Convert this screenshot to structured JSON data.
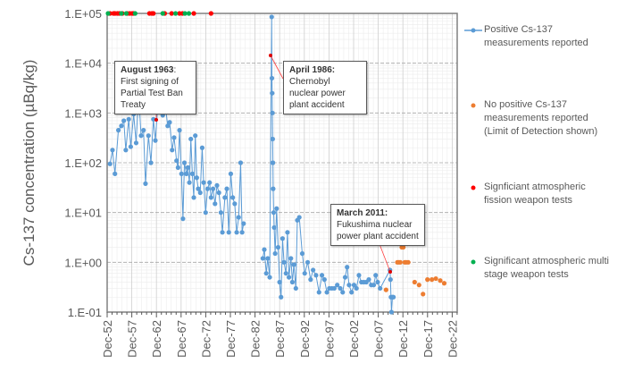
{
  "chart_data": {
    "type": "scatter",
    "title": "",
    "ylabel": "Cs-137 concentration (µBq/kg)",
    "xlabel": "",
    "y_scale": "log",
    "ylim": [
      0.1,
      100000
    ],
    "xlim": [
      "Dec-52",
      "Dec-23"
    ],
    "grid": true,
    "legend_placement": "right",
    "y_ticks": [
      "1.E-01",
      "1.E+00",
      "1.E+01",
      "1.E+02",
      "1.E+03",
      "1.E+04",
      "1.E+05"
    ],
    "x_ticks": [
      "Dec-52",
      "Dec-57",
      "Dec-62",
      "Dec-67",
      "Dec-72",
      "Dec-77",
      "Dec-82",
      "Dec-87",
      "Dec-92",
      "Dec-97",
      "Dec-02",
      "Dec-07",
      "Dec-12",
      "Dec-17",
      "Dec-22"
    ],
    "colors": {
      "positive": "#5B9BD5",
      "lod": "#ED7D31",
      "fission": "#FF0000",
      "multistage": "#00B050"
    },
    "series": [
      {
        "name": "Positive Cs-137 measurements reported",
        "style": "line-marker",
        "points": [
          [
            1953.5,
            95
          ],
          [
            1954,
            180
          ],
          [
            1954.5,
            60
          ],
          [
            1955.2,
            450
          ],
          [
            1955.8,
            550
          ],
          [
            1956.3,
            700
          ],
          [
            1956.7,
            180
          ],
          [
            1957.3,
            750
          ],
          [
            1957.7,
            210
          ],
          [
            1958.3,
            950
          ],
          [
            1958.8,
            250
          ],
          [
            1959.3,
            2500
          ],
          [
            1959.8,
            350
          ],
          [
            1960.3,
            450
          ],
          [
            1960.7,
            38
          ],
          [
            1961.3,
            350
          ],
          [
            1961.8,
            100
          ],
          [
            1962.3,
            750
          ],
          [
            1962.7,
            280
          ],
          [
            1963.3,
            2000
          ],
          [
            1963.7,
            3000
          ],
          [
            1964.2,
            900
          ],
          [
            1964.7,
            1500
          ],
          [
            1965.2,
            550
          ],
          [
            1965.6,
            650
          ],
          [
            1966.1,
            180
          ],
          [
            1966.5,
            320
          ],
          [
            1967,
            110
          ],
          [
            1967.3,
            80
          ],
          [
            1967.6,
            450
          ],
          [
            1968,
            60
          ],
          [
            1968.3,
            7.5
          ],
          [
            1968.6,
            100
          ],
          [
            1969,
            60
          ],
          [
            1969.3,
            80
          ],
          [
            1969.6,
            40
          ],
          [
            1969.9,
            300
          ],
          [
            1970.2,
            60
          ],
          [
            1970.5,
            20
          ],
          [
            1970.8,
            350
          ],
          [
            1971.1,
            50
          ],
          [
            1971.4,
            30
          ],
          [
            1971.8,
            25
          ],
          [
            1972.2,
            200
          ],
          [
            1972.5,
            40
          ],
          [
            1972.9,
            10
          ],
          [
            1973.3,
            30
          ],
          [
            1973.7,
            40
          ],
          [
            1974,
            20
          ],
          [
            1974.4,
            30
          ],
          [
            1974.8,
            15
          ],
          [
            1975.2,
            35
          ],
          [
            1975.6,
            25
          ],
          [
            1976,
            10
          ],
          [
            1976.3,
            4
          ],
          [
            1976.8,
            20
          ],
          [
            1977.2,
            30
          ],
          [
            1977.6,
            4
          ],
          [
            1978,
            60
          ],
          [
            1978.4,
            20
          ],
          [
            1978.8,
            15
          ],
          [
            1979.2,
            4
          ],
          [
            1979.6,
            8
          ],
          [
            1980,
            100
          ],
          [
            1980.3,
            4
          ],
          [
            1980.6,
            6
          ],
          [
            1984.5,
            1.2
          ],
          [
            1984.8,
            1.8
          ],
          [
            1985.2,
            0.6
          ],
          [
            1985.5,
            1.2
          ],
          [
            1985.9,
            0.5
          ],
          [
            1986.3,
            85000
          ],
          [
            1986.35,
            5000
          ],
          [
            1986.4,
            2500
          ],
          [
            1986.45,
            1000
          ],
          [
            1986.5,
            300
          ],
          [
            1986.55,
            100
          ],
          [
            1986.6,
            30
          ],
          [
            1986.7,
            10
          ],
          [
            1986.8,
            5
          ],
          [
            1987,
            1.5
          ],
          [
            1987.3,
            12
          ],
          [
            1987.6,
            2
          ],
          [
            1987.9,
            0.4
          ],
          [
            1988.2,
            0.2
          ],
          [
            1988.5,
            3
          ],
          [
            1988.8,
            1
          ],
          [
            1989.2,
            0.6
          ],
          [
            1989.5,
            4
          ],
          [
            1989.8,
            0.5
          ],
          [
            1990.2,
            1.2
          ],
          [
            1990.5,
            0.4
          ],
          [
            1990.8,
            0.9
          ],
          [
            1991.2,
            0.3
          ],
          [
            1991.5,
            7
          ],
          [
            1991.9,
            8
          ],
          [
            1992.5,
            1.5
          ],
          [
            1993,
            0.6
          ],
          [
            1993.6,
            1
          ],
          [
            1994.2,
            0.45
          ],
          [
            1994.7,
            0.7
          ],
          [
            1995.3,
            0.55
          ],
          [
            1995.9,
            0.25
          ],
          [
            1996.5,
            0.55
          ],
          [
            1997,
            0.45
          ],
          [
            1997.5,
            0.25
          ],
          [
            1998,
            0.3
          ],
          [
            1998.5,
            0.3
          ],
          [
            1999,
            0.3
          ],
          [
            1999.6,
            0.35
          ],
          [
            2000.2,
            0.3
          ],
          [
            2000.7,
            0.25
          ],
          [
            2001.2,
            0.5
          ],
          [
            2001.6,
            0.8
          ],
          [
            2002,
            0.35
          ],
          [
            2002.5,
            0.25
          ],
          [
            2003,
            0.35
          ],
          [
            2003.5,
            0.3
          ],
          [
            2004,
            0.55
          ],
          [
            2004.5,
            0.4
          ],
          [
            2005,
            0.4
          ],
          [
            2005.5,
            0.4
          ],
          [
            2006,
            0.45
          ],
          [
            2006.5,
            0.35
          ],
          [
            2007,
            0.35
          ],
          [
            2007.4,
            0.55
          ],
          [
            2007.8,
            0.4
          ],
          [
            2008.3,
            0.3
          ],
          [
            2010.3,
            0.7
          ],
          [
            2010.4,
            0.45
          ],
          [
            2010.5,
            0.2
          ],
          [
            2010.6,
            0.1
          ],
          [
            2010.8,
            0.2
          ],
          [
            2011,
            0.2
          ]
        ]
      },
      {
        "name": "No positive Cs-137 measurements reported (Limit of Detection shown)",
        "style": "marker",
        "points": [
          [
            2009.5,
            0.28
          ],
          [
            2011.8,
            1
          ],
          [
            2012.1,
            1
          ],
          [
            2012.4,
            1
          ],
          [
            2012.7,
            2
          ],
          [
            2013,
            2
          ],
          [
            2013.3,
            1
          ],
          [
            2013.6,
            1
          ],
          [
            2014,
            1
          ],
          [
            2015.3,
            0.4
          ],
          [
            2016.2,
            0.35
          ],
          [
            2017,
            0.23
          ],
          [
            2017.9,
            0.45
          ],
          [
            2018.8,
            0.45
          ],
          [
            2019.6,
            0.47
          ],
          [
            2020.5,
            0.43
          ],
          [
            2021.3,
            0.38
          ]
        ]
      },
      {
        "name": "Signficiant atmospheric fission weapon tests",
        "style": "marker",
        "points": [
          [
            1953.5,
            100000
          ],
          [
            1954.2,
            100000
          ],
          [
            1954.5,
            100000
          ],
          [
            1955,
            100000
          ],
          [
            1955.4,
            100000
          ],
          [
            1956,
            100000
          ],
          [
            1957,
            100000
          ],
          [
            1957.5,
            100000
          ],
          [
            1958,
            100000
          ],
          [
            1958.3,
            100000
          ],
          [
            1961.5,
            100000
          ],
          [
            1962,
            100000
          ],
          [
            1962.3,
            100000
          ],
          [
            1964.6,
            100000
          ],
          [
            1966,
            100000
          ],
          [
            1967.6,
            100000
          ],
          [
            1968.2,
            100000
          ],
          [
            1970.5,
            100000
          ],
          [
            1974,
            100000
          ]
        ]
      },
      {
        "name": "Significant atmospheric multi stage weapon tests",
        "style": "marker",
        "points": [
          [
            1953.1,
            100000
          ],
          [
            1955.8,
            100000
          ],
          [
            1956.8,
            100000
          ],
          [
            1958.6,
            100000
          ],
          [
            1964.2,
            100000
          ],
          [
            1966.8,
            100000
          ],
          [
            1968.7,
            100000
          ],
          [
            1969.5,
            100000
          ]
        ]
      }
    ],
    "annotations": [
      {
        "bold": "August 1963",
        "text": ": First signing of Partial Test Ban Treaty"
      },
      {
        "bold": "April 1986:",
        "text": "Chernobyl nuclear power plant accident"
      },
      {
        "bold": "March 2011:",
        "text": "Fukushima nuclear power plant accident"
      }
    ]
  }
}
